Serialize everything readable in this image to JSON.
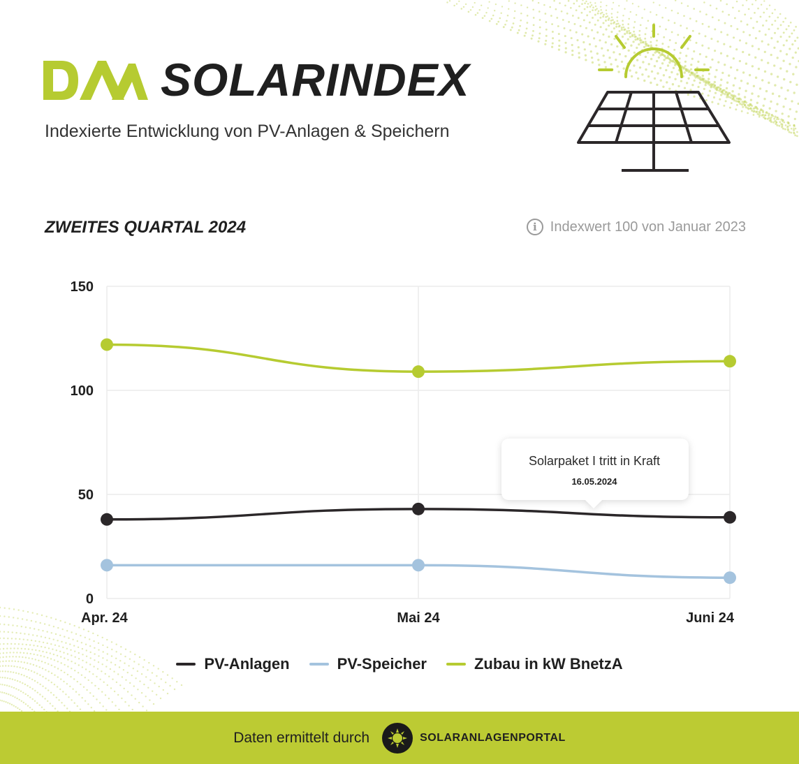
{
  "header": {
    "brand_title": "SOLARINDEX",
    "subtitle": "Indexierte Entwicklung von PV-Anlagen & Speichern",
    "logo_label": "DAA"
  },
  "period_label": "ZWEITES QUARTAL 2024",
  "info_note": "Indexwert 100 von Januar 2023",
  "colors": {
    "accent": "#bccb33",
    "pv_anlagen": "#2b2729",
    "pv_speicher": "#a4c3de",
    "zubau": "#b6cb31",
    "grid": "#ececec"
  },
  "chart_data": {
    "type": "line",
    "categories": [
      "Apr. 24",
      "Mai 24",
      "Juni 24"
    ],
    "ylim": [
      0,
      150
    ],
    "yticks": [
      0,
      50,
      100,
      150
    ],
    "grid": true,
    "legend_position": "bottom",
    "series": [
      {
        "name": "PV-Anlagen",
        "values": [
          38,
          43,
          39
        ]
      },
      {
        "name": "PV-Speicher",
        "values": [
          16,
          16,
          10
        ]
      },
      {
        "name": "Zubau in kW BnetzA",
        "values": [
          122,
          109,
          114
        ]
      }
    ],
    "annotation": {
      "text": "Solarpaket I tritt in Kraft",
      "date": "16.05.2024"
    }
  },
  "footer": {
    "text": "Daten ermittelt durch",
    "partner": "SOLARANLAGENPORTAL"
  }
}
